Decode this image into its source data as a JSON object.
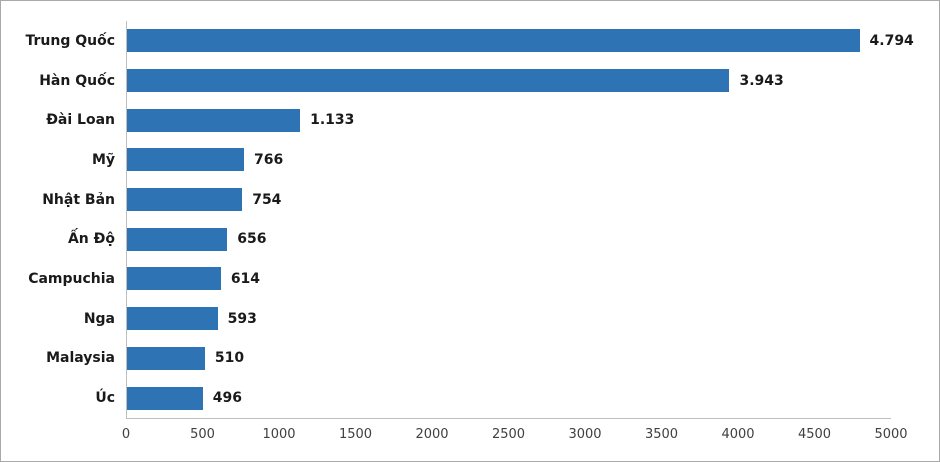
{
  "chart_data": {
    "type": "bar",
    "orientation": "horizontal",
    "title": "",
    "xlabel": "",
    "ylabel": "",
    "grid": false,
    "legend": false,
    "categories": [
      "Trung Quốc",
      "Hàn Quốc",
      "Đài Loan",
      "Mỹ",
      "Nhật Bản",
      "Ấn Độ",
      "Campuchia",
      "Nga",
      "Malaysia",
      "Úc"
    ],
    "values": [
      4794,
      3943,
      1133,
      766,
      754,
      656,
      614,
      593,
      510,
      496
    ],
    "value_labels": [
      "4.794",
      "3.943",
      "1.133",
      "766",
      "754",
      "656",
      "614",
      "593",
      "510",
      "496"
    ],
    "xlim": [
      0,
      5000
    ],
    "x_ticks": [
      "0",
      "500",
      "1000",
      "1500",
      "2000",
      "2500",
      "3000",
      "3500",
      "4000",
      "4500",
      "5000"
    ],
    "colors": {
      "bar": "#2e74b5",
      "axis_line": "#bfbfbf",
      "category_label": "#1a1a1a",
      "value_label": "#1a1a1a",
      "tick_label": "#404040",
      "figure_border": "#a9a9a9",
      "background": "#ffffff"
    }
  }
}
